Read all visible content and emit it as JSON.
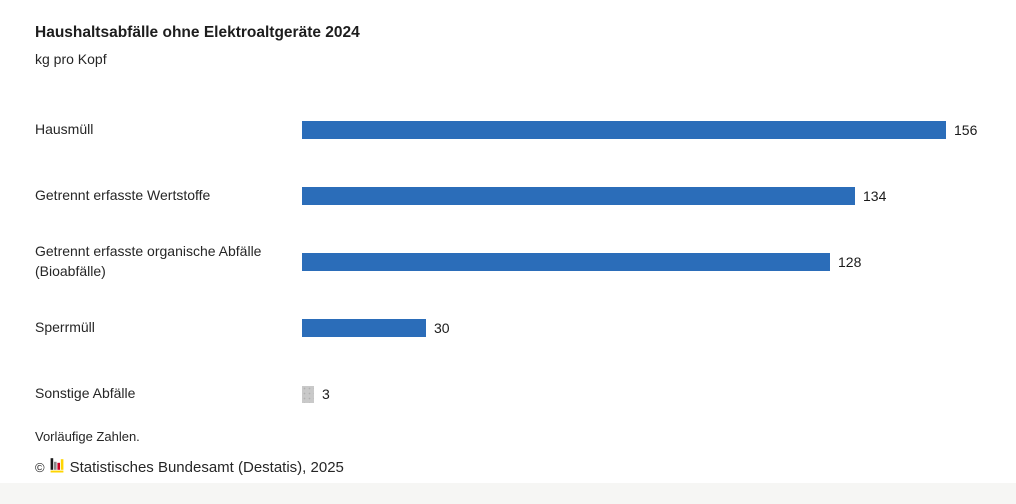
{
  "header": {
    "title": "Haushaltsabfälle ohne Elektroaltgeräte 2024",
    "subtitle": "kg pro Kopf"
  },
  "footer": {
    "note": "Vorläufige Zahlen.",
    "copyright_symbol": "©",
    "source": "Statistisches Bundesamt (Destatis), 2025"
  },
  "colors": {
    "bar_blue": "#2b6db9",
    "bar_gray": "#c9c9c9",
    "text_dark": "#262626",
    "bottom_strip": "#f6f6f4",
    "logo_black": "#1a1a1a",
    "logo_gray": "#8a8a8a",
    "logo_red": "#cc0327",
    "logo_yellow": "#ffd500"
  },
  "chart_data": {
    "type": "bar",
    "orientation": "horizontal",
    "title": "Haushaltsabfälle ohne Elektroaltgeräte 2024",
    "unit_label": "kg pro Kopf",
    "categories": [
      "Hausmüll",
      "Getrennt erfasste Wertstoffe",
      "Getrennt erfasste organische Abfälle (Bioabfälle)",
      "Sperrmüll",
      "Sonstige Abfälle"
    ],
    "values": [
      156,
      134,
      128,
      30,
      3
    ],
    "bar_colors": [
      "#2b6db9",
      "#2b6db9",
      "#2b6db9",
      "#2b6db9",
      "#c9c9c9"
    ],
    "patterned": [
      false,
      false,
      false,
      false,
      true
    ],
    "xlim": [
      0,
      156
    ],
    "value_labels_shown": true,
    "grid": false,
    "legend": false,
    "annotations": [
      "Vorläufige Zahlen."
    ],
    "source": "© Statistisches Bundesamt (Destatis), 2025"
  }
}
